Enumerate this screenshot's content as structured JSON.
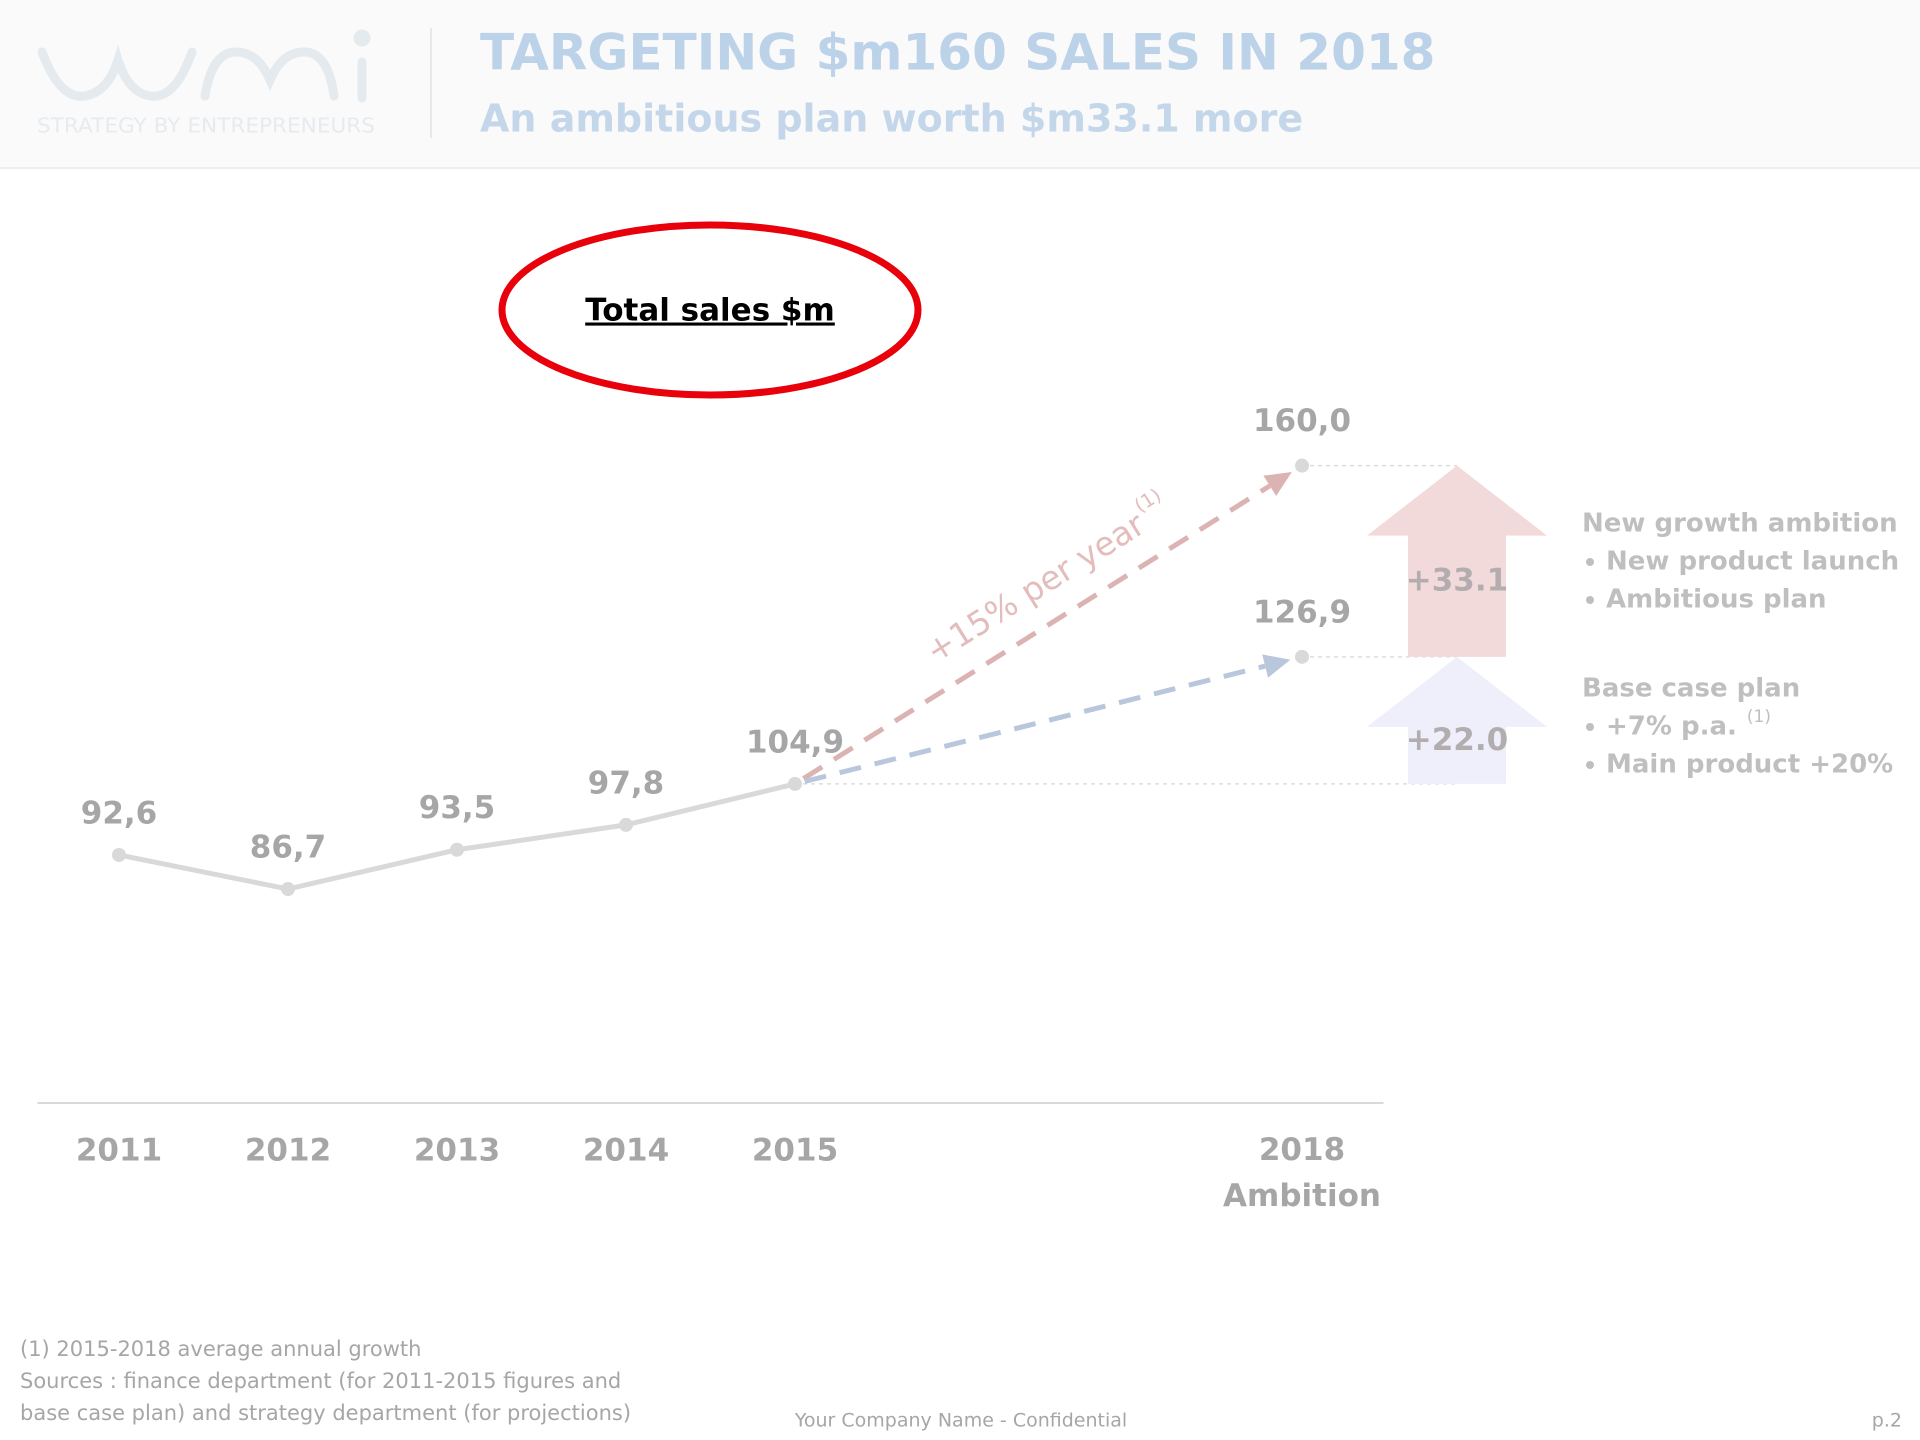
{
  "header": {
    "logo_tagline": "STRATEGY BY ENTREPRENEURS",
    "title": "TARGETING $m160 SALES IN 2018",
    "subtitle": "An ambitious plan worth $m33.1 more"
  },
  "chart_data": {
    "type": "line",
    "title": "Total sales $m",
    "x": [
      2011,
      2012,
      2013,
      2014,
      2015,
      2018
    ],
    "xlim": [
      2010.5,
      2018.5
    ],
    "xticks": [
      2011,
      2012,
      2013,
      2014,
      2015,
      {
        "value": 2018,
        "label": "2018 Ambition"
      }
    ],
    "ylim": [
      50,
      175
    ],
    "series": [
      {
        "color": "#d9d9d9",
        "values": [
          92.6,
          86.7,
          93.5,
          97.8,
          104.9,
          null
        ],
        "value_labels": [
          "92,6",
          "86,7",
          "93,5",
          "97,8",
          "104,9",
          null
        ]
      }
    ],
    "projections": [
      {
        "name": "New growth ambition",
        "bullets": [
          {
            "text": "New product launch"
          },
          {
            "text": "Ambitious plan"
          }
        ],
        "value": 160.0,
        "value_label": "160,0",
        "increase": 33.1,
        "increase_label": "+33.1",
        "color": "#dcb3b3",
        "arrow_color": "#f3dada"
      },
      {
        "name": "Base case plan",
        "bullets": [
          {
            "text": "+7% p.a.",
            "note": "(1)"
          },
          {
            "text": "Main product +20%"
          }
        ],
        "value": 126.9,
        "value_label": "126,9",
        "increase": 22.0,
        "increase_label": "+22.0",
        "color": "#b9c7dc",
        "arrow_color": "#efeffb"
      }
    ],
    "growth_annotation": {
      "text": "+15% per year",
      "note": "(1)"
    }
  },
  "footnotes": [
    "(1) 2015-2018 average annual growth",
    "Sources : finance department (for 2011-2015 figures and",
    "base case plan) and strategy department  (for projections)"
  ],
  "footer": {
    "text": "Your Company Name - Confidential",
    "page": "p.2"
  }
}
